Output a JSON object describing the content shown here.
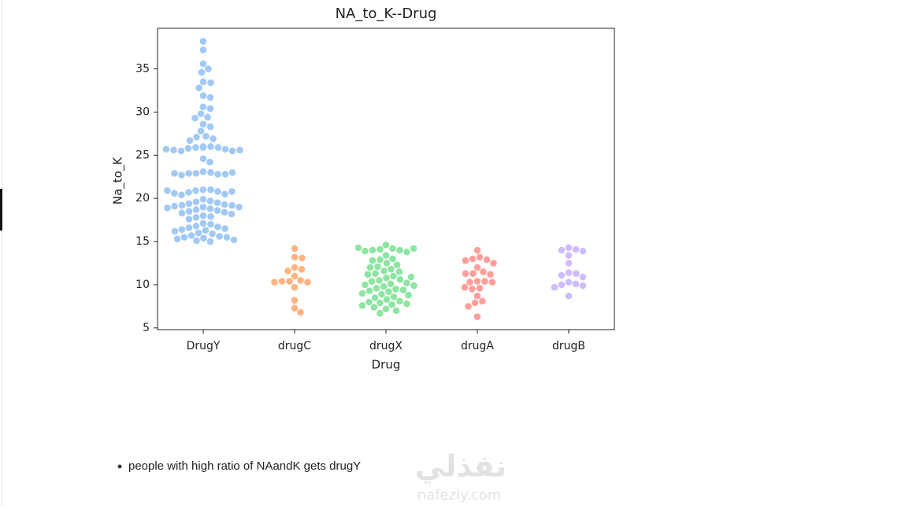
{
  "chart_data": {
    "type": "swarm",
    "title": "NA_to_K--Drug",
    "x_label": "Drug",
    "y_label": "Na_to_K",
    "categories": [
      "DrugY",
      "drugC",
      "drugX",
      "drugA",
      "drugB"
    ],
    "colors": [
      "#a1c9f4",
      "#ffb482",
      "#8de5a1",
      "#ff9f9b",
      "#d0bbff"
    ],
    "values": [
      [
        38.2,
        37.2,
        35.6,
        35.0,
        34.6,
        33.5,
        33.4,
        32.8,
        31.9,
        31.7,
        30.6,
        30.4,
        29.8,
        29.4,
        29.3,
        28.6,
        28.3,
        27.8,
        27.2,
        27.1,
        26.9,
        26.7,
        26.0,
        26.0,
        25.9,
        25.9,
        25.8,
        25.7,
        25.5,
        25.5,
        25.6,
        25.6,
        25.7,
        25.9,
        24.6,
        24.2,
        23.1,
        23.0,
        22.9,
        22.9,
        22.8,
        22.7,
        22.8,
        22.9,
        23.0,
        21.0,
        21.0,
        20.9,
        20.8,
        20.7,
        20.5,
        20.4,
        20.6,
        20.8,
        20.9,
        19.9,
        19.7,
        19.6,
        19.5,
        19.4,
        19.3,
        19.2,
        19.2,
        19.1,
        19.0,
        19.0,
        18.9,
        18.8,
        18.7,
        18.6,
        18.5,
        18.4,
        18.3,
        18.2,
        18.0,
        17.9,
        17.8,
        17.6,
        17.1,
        17.0,
        16.8,
        16.7,
        16.6,
        16.5,
        16.4,
        16.3,
        16.2,
        16.0,
        15.9,
        15.7,
        15.6,
        15.5,
        15.5,
        15.4,
        15.3,
        15.2,
        15.1,
        15.0
      ],
      [
        14.2,
        13.2,
        13.1,
        12.0,
        11.8,
        11.6,
        11.0,
        10.5,
        10.4,
        10.4,
        10.3,
        10.3,
        9.7,
        8.2,
        7.3,
        6.8
      ],
      [
        14.6,
        14.2,
        14.1,
        14.0,
        14.0,
        13.9,
        13.8,
        14.2,
        14.3,
        13.4,
        13.0,
        12.9,
        12.8,
        12.5,
        12.3,
        12.1,
        11.8,
        11.6,
        11.5,
        11.3,
        11.2,
        11.0,
        10.8,
        10.6,
        10.5,
        10.4,
        10.2,
        10.1,
        10.0,
        9.9,
        9.8,
        9.6,
        9.5,
        9.4,
        9.3,
        9.2,
        9.0,
        8.9,
        8.8,
        8.6,
        8.5,
        8.3,
        8.1,
        8.0,
        7.9,
        7.8,
        7.7,
        7.6,
        7.4,
        7.2,
        7.0,
        6.7,
        12.0,
        10.9
      ],
      [
        14.0,
        13.2,
        13.0,
        12.9,
        12.8,
        12.5,
        12.0,
        11.5,
        11.3,
        11.3,
        11.2,
        10.4,
        10.4,
        10.3,
        10.3,
        9.7,
        9.6,
        9.5,
        8.7,
        8.1,
        7.9,
        7.5,
        6.3
      ],
      [
        14.3,
        14.1,
        14.0,
        13.9,
        13.4,
        12.5,
        11.4,
        11.3,
        11.1,
        10.9,
        10.3,
        10.1,
        10.0,
        9.9,
        9.7,
        8.7
      ]
    ],
    "ylim": [
      4.8,
      39.7
    ],
    "yticks": [
      5,
      10,
      15,
      20,
      25,
      30,
      35
    ]
  },
  "notes": [
    "people with high ratio of NAandK gets drugY"
  ],
  "watermark": {
    "arabic": "نفذلي",
    "url": "nafezly.com"
  }
}
